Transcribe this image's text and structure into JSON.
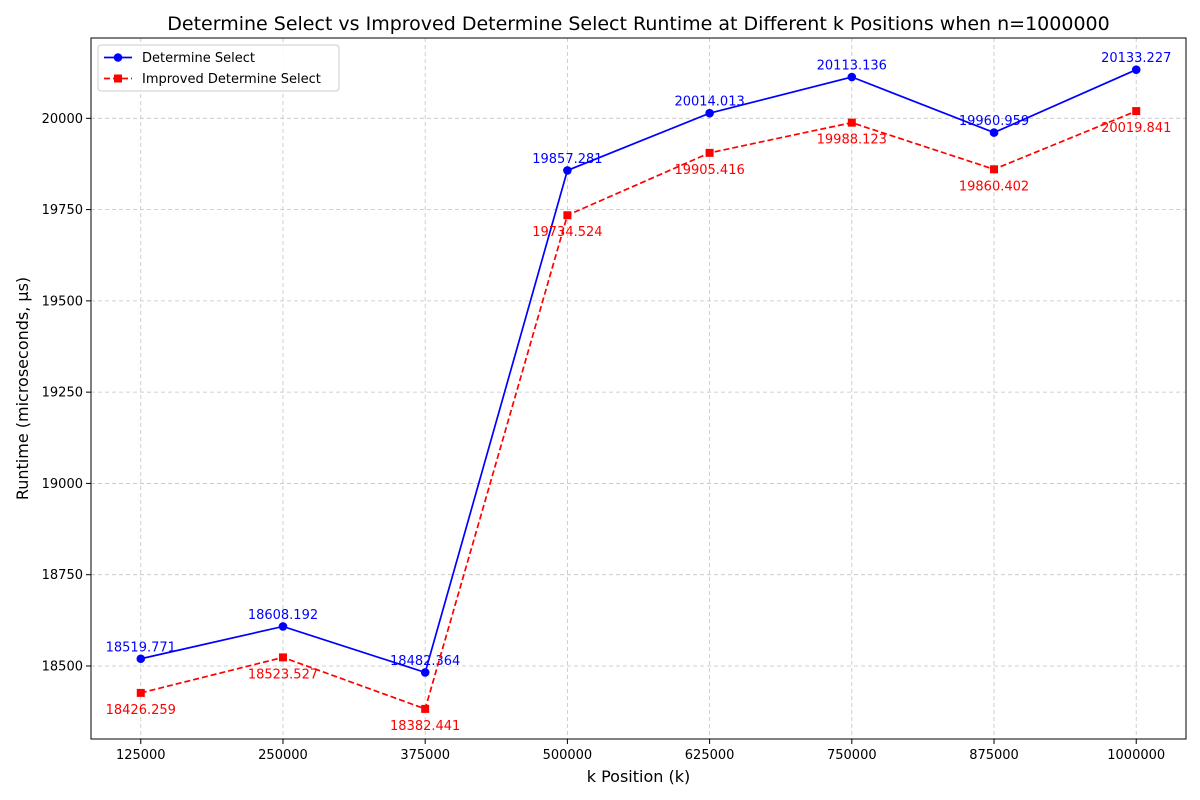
{
  "chart_data": {
    "type": "line",
    "title": "Determine Select vs Improved Determine Select Runtime at Different k Positions when n=1000000",
    "xlabel": "k Position (k)",
    "ylabel": "Runtime (microseconds, µs)",
    "categories": [
      "125000",
      "250000",
      "375000",
      "500000",
      "625000",
      "750000",
      "875000",
      "1000000"
    ],
    "x": [
      125000,
      250000,
      375000,
      500000,
      625000,
      750000,
      875000,
      1000000
    ],
    "xlim": [
      81250,
      1043750
    ],
    "ylim": [
      18300,
      20220
    ],
    "yticks": [
      "18500",
      "18750",
      "19000",
      "19250",
      "19500",
      "19750",
      "20000"
    ],
    "grid": true,
    "legend_position": "top-left",
    "series": [
      {
        "name": "Determine Select",
        "color": "#0000ff",
        "line_style": "solid",
        "marker": "circle",
        "label_position": "above",
        "values": [
          18519.771,
          18608.192,
          18482.364,
          19857.281,
          20014.013,
          20113.136,
          19960.959,
          20133.227
        ],
        "labels": [
          "18519.771",
          "18608.192",
          "18482.364",
          "19857.281",
          "20014.013",
          "20113.136",
          "19960.959",
          "20133.227"
        ]
      },
      {
        "name": "Improved Determine Select",
        "color": "#ff0000",
        "line_style": "dashed",
        "marker": "square",
        "label_position": "below",
        "values": [
          18426.259,
          18523.527,
          18382.441,
          19734.524,
          19905.416,
          19988.123,
          19860.402,
          20019.841
        ],
        "labels": [
          "18426.259",
          "18523.527",
          "18382.441",
          "19734.524",
          "19905.416",
          "19988.123",
          "19860.402",
          "20019.841"
        ]
      }
    ]
  }
}
